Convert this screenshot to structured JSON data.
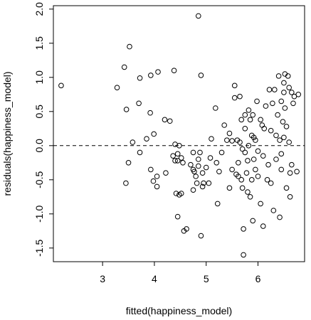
{
  "chart_data": {
    "type": "scatter",
    "title": "",
    "xlabel": "fitted(happiness_model)",
    "ylabel": "residuals(happiness_model)",
    "xlim": [
      2.05,
      6.9
    ],
    "ylim": [
      -1.7,
      2.05
    ],
    "xticks": [
      "3",
      "4",
      "5",
      "6"
    ],
    "yticks": [
      "-1.5",
      "-1.0",
      "-0.5",
      "0.0",
      "0.5",
      "1.0",
      "1.5",
      "2.0"
    ],
    "grid": false,
    "marker": "open-circle",
    "reference_line": {
      "y": 0,
      "style": "dashed"
    },
    "points": [
      [
        2.2,
        0.88
      ],
      [
        3.28,
        0.85
      ],
      [
        3.42,
        1.15
      ],
      [
        3.46,
        0.53
      ],
      [
        3.52,
        1.45
      ],
      [
        3.45,
        -0.55
      ],
      [
        3.5,
        -0.25
      ],
      [
        3.58,
        0.05
      ],
      [
        3.72,
        0.99
      ],
      [
        3.7,
        0.62
      ],
      [
        3.72,
        -0.1
      ],
      [
        3.85,
        0.1
      ],
      [
        3.92,
        0.48
      ],
      [
        3.93,
        1.03
      ],
      [
        3.93,
        -0.35
      ],
      [
        3.98,
        -0.52
      ],
      [
        3.99,
        0.17
      ],
      [
        4.07,
        1.08
      ],
      [
        4.05,
        -0.45
      ],
      [
        4.05,
        -0.6
      ],
      [
        4.2,
        0.38
      ],
      [
        4.22,
        -0.4
      ],
      [
        4.3,
        0.36
      ],
      [
        4.38,
        1.1
      ],
      [
        4.36,
        -0.15
      ],
      [
        4.4,
        -0.22
      ],
      [
        4.4,
        0.02
      ],
      [
        4.42,
        -0.7
      ],
      [
        4.45,
        -0.12
      ],
      [
        4.45,
        -0.22
      ],
      [
        4.45,
        -1.04
      ],
      [
        4.48,
        -0.72
      ],
      [
        4.48,
        0.0
      ],
      [
        4.52,
        -0.7
      ],
      [
        4.52,
        -0.18
      ],
      [
        4.55,
        -0.25
      ],
      [
        4.57,
        -1.25
      ],
      [
        4.62,
        -1.22
      ],
      [
        4.7,
        -0.28
      ],
      [
        4.75,
        -0.1
      ],
      [
        4.75,
        -0.35
      ],
      [
        4.75,
        -0.65
      ],
      [
        4.77,
        -0.38
      ],
      [
        4.8,
        -0.45
      ],
      [
        4.82,
        -0.55
      ],
      [
        4.85,
        -0.3
      ],
      [
        4.85,
        -0.2
      ],
      [
        4.85,
        1.9
      ],
      [
        4.88,
        -0.1
      ],
      [
        4.9,
        1.03
      ],
      [
        4.9,
        -1.32
      ],
      [
        4.93,
        -0.4
      ],
      [
        4.93,
        -0.6
      ],
      [
        4.95,
        -0.55
      ],
      [
        5.0,
        -0.32
      ],
      [
        5.05,
        -0.55
      ],
      [
        5.08,
        -0.18
      ],
      [
        5.1,
        0.1
      ],
      [
        5.18,
        0.55
      ],
      [
        5.2,
        -0.25
      ],
      [
        5.22,
        -0.85
      ],
      [
        5.25,
        -0.38
      ],
      [
        5.3,
        -0.1
      ],
      [
        5.35,
        0.3
      ],
      [
        5.4,
        0.08
      ],
      [
        5.45,
        -0.62
      ],
      [
        5.45,
        0.18
      ],
      [
        5.5,
        -0.35
      ],
      [
        5.5,
        0.07
      ],
      [
        5.55,
        0.88
      ],
      [
        5.55,
        0.7
      ],
      [
        5.58,
        -0.42
      ],
      [
        5.6,
        0.08
      ],
      [
        5.62,
        -0.25
      ],
      [
        5.62,
        -0.45
      ],
      [
        5.65,
        0.72
      ],
      [
        5.65,
        0.05
      ],
      [
        5.68,
        0.38
      ],
      [
        5.68,
        -0.5
      ],
      [
        5.7,
        -0.05
      ],
      [
        5.7,
        -0.62
      ],
      [
        5.72,
        -1.22
      ],
      [
        5.72,
        -1.6
      ],
      [
        5.75,
        0.45
      ],
      [
        5.75,
        0.25
      ],
      [
        5.75,
        -0.1
      ],
      [
        5.78,
        -0.4
      ],
      [
        5.8,
        -0.68
      ],
      [
        5.8,
        -0.22
      ],
      [
        5.82,
        0.52
      ],
      [
        5.82,
        0.0
      ],
      [
        5.85,
        0.38
      ],
      [
        5.85,
        -0.75
      ],
      [
        5.88,
        0.15
      ],
      [
        5.88,
        -0.5
      ],
      [
        5.9,
        0.45
      ],
      [
        5.9,
        -1.1
      ],
      [
        5.92,
        0.12
      ],
      [
        5.92,
        -0.2
      ],
      [
        5.95,
        0.08
      ],
      [
        5.95,
        -0.35
      ],
      [
        5.98,
        0.65
      ],
      [
        6.0,
        -0.45
      ],
      [
        6.0,
        -0.08
      ],
      [
        6.05,
        0.38
      ],
      [
        6.05,
        -0.85
      ],
      [
        6.08,
        0.3
      ],
      [
        6.1,
        -0.15
      ],
      [
        6.1,
        -1.18
      ],
      [
        6.12,
        0.25
      ],
      [
        6.15,
        0.58
      ],
      [
        6.18,
        -0.5
      ],
      [
        6.2,
        -0.28
      ],
      [
        6.22,
        0.82
      ],
      [
        6.25,
        0.22
      ],
      [
        6.25,
        -0.55
      ],
      [
        6.28,
        0.62
      ],
      [
        6.3,
        -0.95
      ],
      [
        6.32,
        0.82
      ],
      [
        6.35,
        0.15
      ],
      [
        6.35,
        -0.2
      ],
      [
        6.38,
        0.45
      ],
      [
        6.4,
        1.02
      ],
      [
        6.42,
        -1.05
      ],
      [
        6.42,
        0.08
      ],
      [
        6.45,
        0.65
      ],
      [
        6.45,
        -0.35
      ],
      [
        6.48,
        0.35
      ],
      [
        6.5,
        0.92
      ],
      [
        6.5,
        0.78
      ],
      [
        6.52,
        1.05
      ],
      [
        6.52,
        0.55
      ],
      [
        6.55,
        0.28
      ],
      [
        6.55,
        -0.62
      ],
      [
        6.58,
        1.02
      ],
      [
        6.6,
        0.85
      ],
      [
        6.6,
        0.05
      ],
      [
        6.62,
        -0.4
      ],
      [
        6.65,
        0.78
      ],
      [
        6.65,
        -0.28
      ],
      [
        6.68,
        0.62
      ],
      [
        6.7,
        0.72
      ],
      [
        6.75,
        -0.38
      ],
      [
        6.78,
        0.75
      ],
      [
        6.62,
        -0.75
      ],
      [
        6.5,
        0.12
      ],
      [
        6.45,
        -0.12
      ]
    ]
  },
  "colors": {
    "background": "#ffffff",
    "ink": "#000000"
  }
}
